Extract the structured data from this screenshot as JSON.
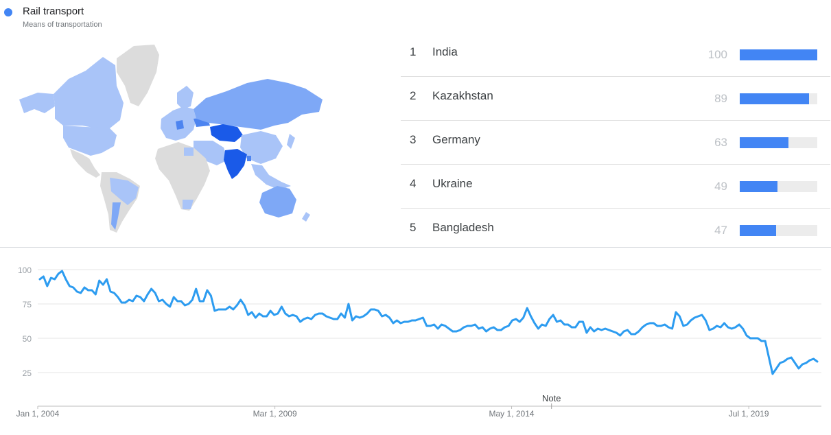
{
  "topic": {
    "title": "Rail transport",
    "subtitle": "Means of transportation",
    "color": "#4285f4"
  },
  "map": {
    "highlight_colors": {
      "strongest": "#1a5ae8",
      "strong": "#4d84f0",
      "medium": "#7ea8f6",
      "light": "#a9c4f8",
      "none": "#dcdcdc"
    }
  },
  "ranking": [
    {
      "rank": "1",
      "name": "India",
      "value": 100
    },
    {
      "rank": "2",
      "name": "Kazakhstan",
      "value": 89
    },
    {
      "rank": "3",
      "name": "Germany",
      "value": 63
    },
    {
      "rank": "4",
      "name": "Ukraine",
      "value": 49
    },
    {
      "rank": "5",
      "name": "Bangladesh",
      "value": 47
    }
  ],
  "chart_data": {
    "type": "line",
    "title": "",
    "xlabel": "",
    "ylabel": "",
    "ylim": [
      0,
      100
    ],
    "yticks": [
      25,
      50,
      75,
      100
    ],
    "xticks": [
      {
        "label": "Jan 1, 2004",
        "year": 2004.0
      },
      {
        "label": "Mar 1, 2009",
        "year": 2009.17
      },
      {
        "label": "May 1, 2014",
        "year": 2014.33
      },
      {
        "label": "Jul 1, 2019",
        "year": 2019.5
      }
    ],
    "x_start": "2004-01",
    "x_end": "2021-02",
    "annotation": {
      "label": "Note",
      "year": 2015.2
    },
    "grid": true,
    "color": "#2d9cf0",
    "series": [
      {
        "values": [
          93,
          95,
          88,
          94,
          93,
          97,
          99,
          93,
          88,
          87,
          84,
          83,
          87,
          85,
          85,
          82,
          92,
          89,
          93,
          84,
          83,
          80,
          76,
          76,
          78,
          77,
          81,
          80,
          77,
          82,
          86,
          83,
          77,
          78,
          75,
          73,
          80,
          77,
          77,
          74,
          75,
          78,
          86,
          77,
          77,
          85,
          81,
          70,
          71,
          71,
          71,
          73,
          71,
          74,
          78,
          74,
          67,
          69,
          65,
          68,
          66,
          66,
          70,
          67,
          68,
          73,
          68,
          66,
          67,
          66,
          62,
          64,
          65,
          64,
          67,
          68,
          68,
          66,
          65,
          64,
          64,
          68,
          65,
          75,
          63,
          66,
          65,
          66,
          68,
          71,
          71,
          70,
          66,
          67,
          65,
          61,
          63,
          61,
          62,
          62,
          63,
          63,
          64,
          65,
          59,
          59,
          60,
          57,
          60,
          59,
          57,
          55,
          55,
          56,
          58,
          59,
          59,
          60,
          57,
          58,
          55,
          57,
          58,
          56,
          56,
          58,
          59,
          63,
          64,
          62,
          65,
          72,
          66,
          61,
          57,
          60,
          59,
          64,
          67,
          62,
          63,
          60,
          60,
          58,
          58,
          62,
          62,
          54,
          58,
          55,
          57,
          56,
          57,
          56,
          55,
          54,
          52,
          55,
          56,
          53,
          53,
          55,
          58,
          60,
          61,
          61,
          59,
          59,
          60,
          58,
          57,
          69,
          66,
          59,
          60,
          63,
          65,
          66,
          67,
          63,
          56,
          57,
          59,
          58,
          61,
          58,
          57,
          58,
          60,
          57,
          52,
          50,
          50,
          50,
          48,
          48,
          36,
          24,
          28,
          32,
          33,
          35,
          36,
          32,
          28,
          31,
          32,
          34,
          35,
          33
        ]
      }
    ]
  }
}
